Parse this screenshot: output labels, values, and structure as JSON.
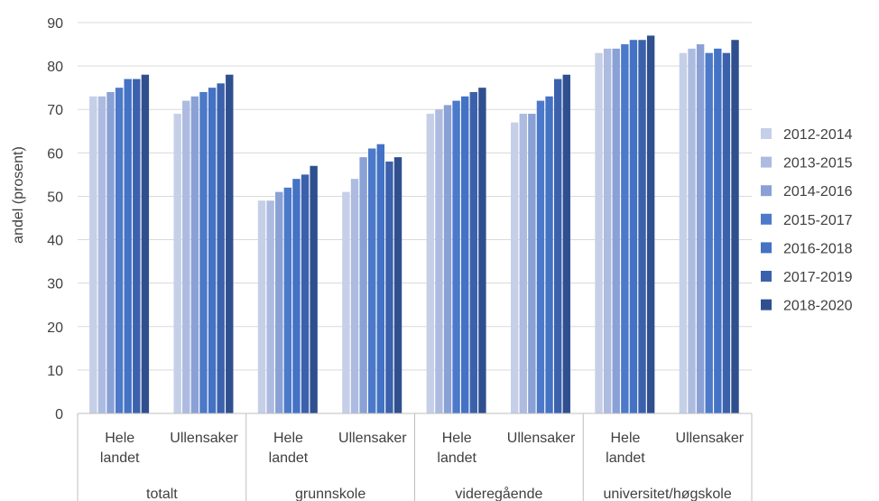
{
  "chart_data": {
    "type": "bar",
    "ylabel": "andel (prosent)",
    "ylim": [
      0,
      90
    ],
    "yticks": [
      0,
      10,
      20,
      30,
      40,
      50,
      60,
      70,
      80,
      90
    ],
    "groups": [
      "totalt",
      "grunnskole",
      "videregående",
      "universitet/høgskole"
    ],
    "subcategories": [
      "Hele landet",
      "Ullensaker"
    ],
    "categories": [
      "totalt - Hele landet",
      "totalt - Ullensaker",
      "grunnskole - Hele landet",
      "grunnskole - Ullensaker",
      "videregående - Hele landet",
      "videregående - Ullensaker",
      "universitet/høgskole - Hele landet",
      "universitet/høgskole - Ullensaker"
    ],
    "legend_position": "right",
    "grid": true,
    "series": [
      {
        "name": "2012-2014",
        "color": "#c5cfe7",
        "values": [
          73,
          69,
          49,
          51,
          69,
          67,
          83,
          83
        ]
      },
      {
        "name": "2013-2015",
        "color": "#adbbe0",
        "values": [
          73,
          72,
          49,
          54,
          70,
          69,
          84,
          84
        ]
      },
      {
        "name": "2014-2016",
        "color": "#8aa1d6",
        "values": [
          74,
          73,
          51,
          59,
          71,
          69,
          84,
          85
        ]
      },
      {
        "name": "2015-2017",
        "color": "#4c79c9",
        "values": [
          75,
          74,
          52,
          61,
          72,
          72,
          85,
          83
        ]
      },
      {
        "name": "2016-2018",
        "color": "#4472c4",
        "values": [
          77,
          75,
          54,
          62,
          73,
          73,
          86,
          84
        ]
      },
      {
        "name": "2017-2019",
        "color": "#3c61ac",
        "values": [
          77,
          76,
          55,
          58,
          74,
          77,
          86,
          83
        ]
      },
      {
        "name": "2018-2020",
        "color": "#2f4f8f",
        "values": [
          78,
          78,
          57,
          59,
          75,
          78,
          87,
          86
        ]
      }
    ]
  }
}
